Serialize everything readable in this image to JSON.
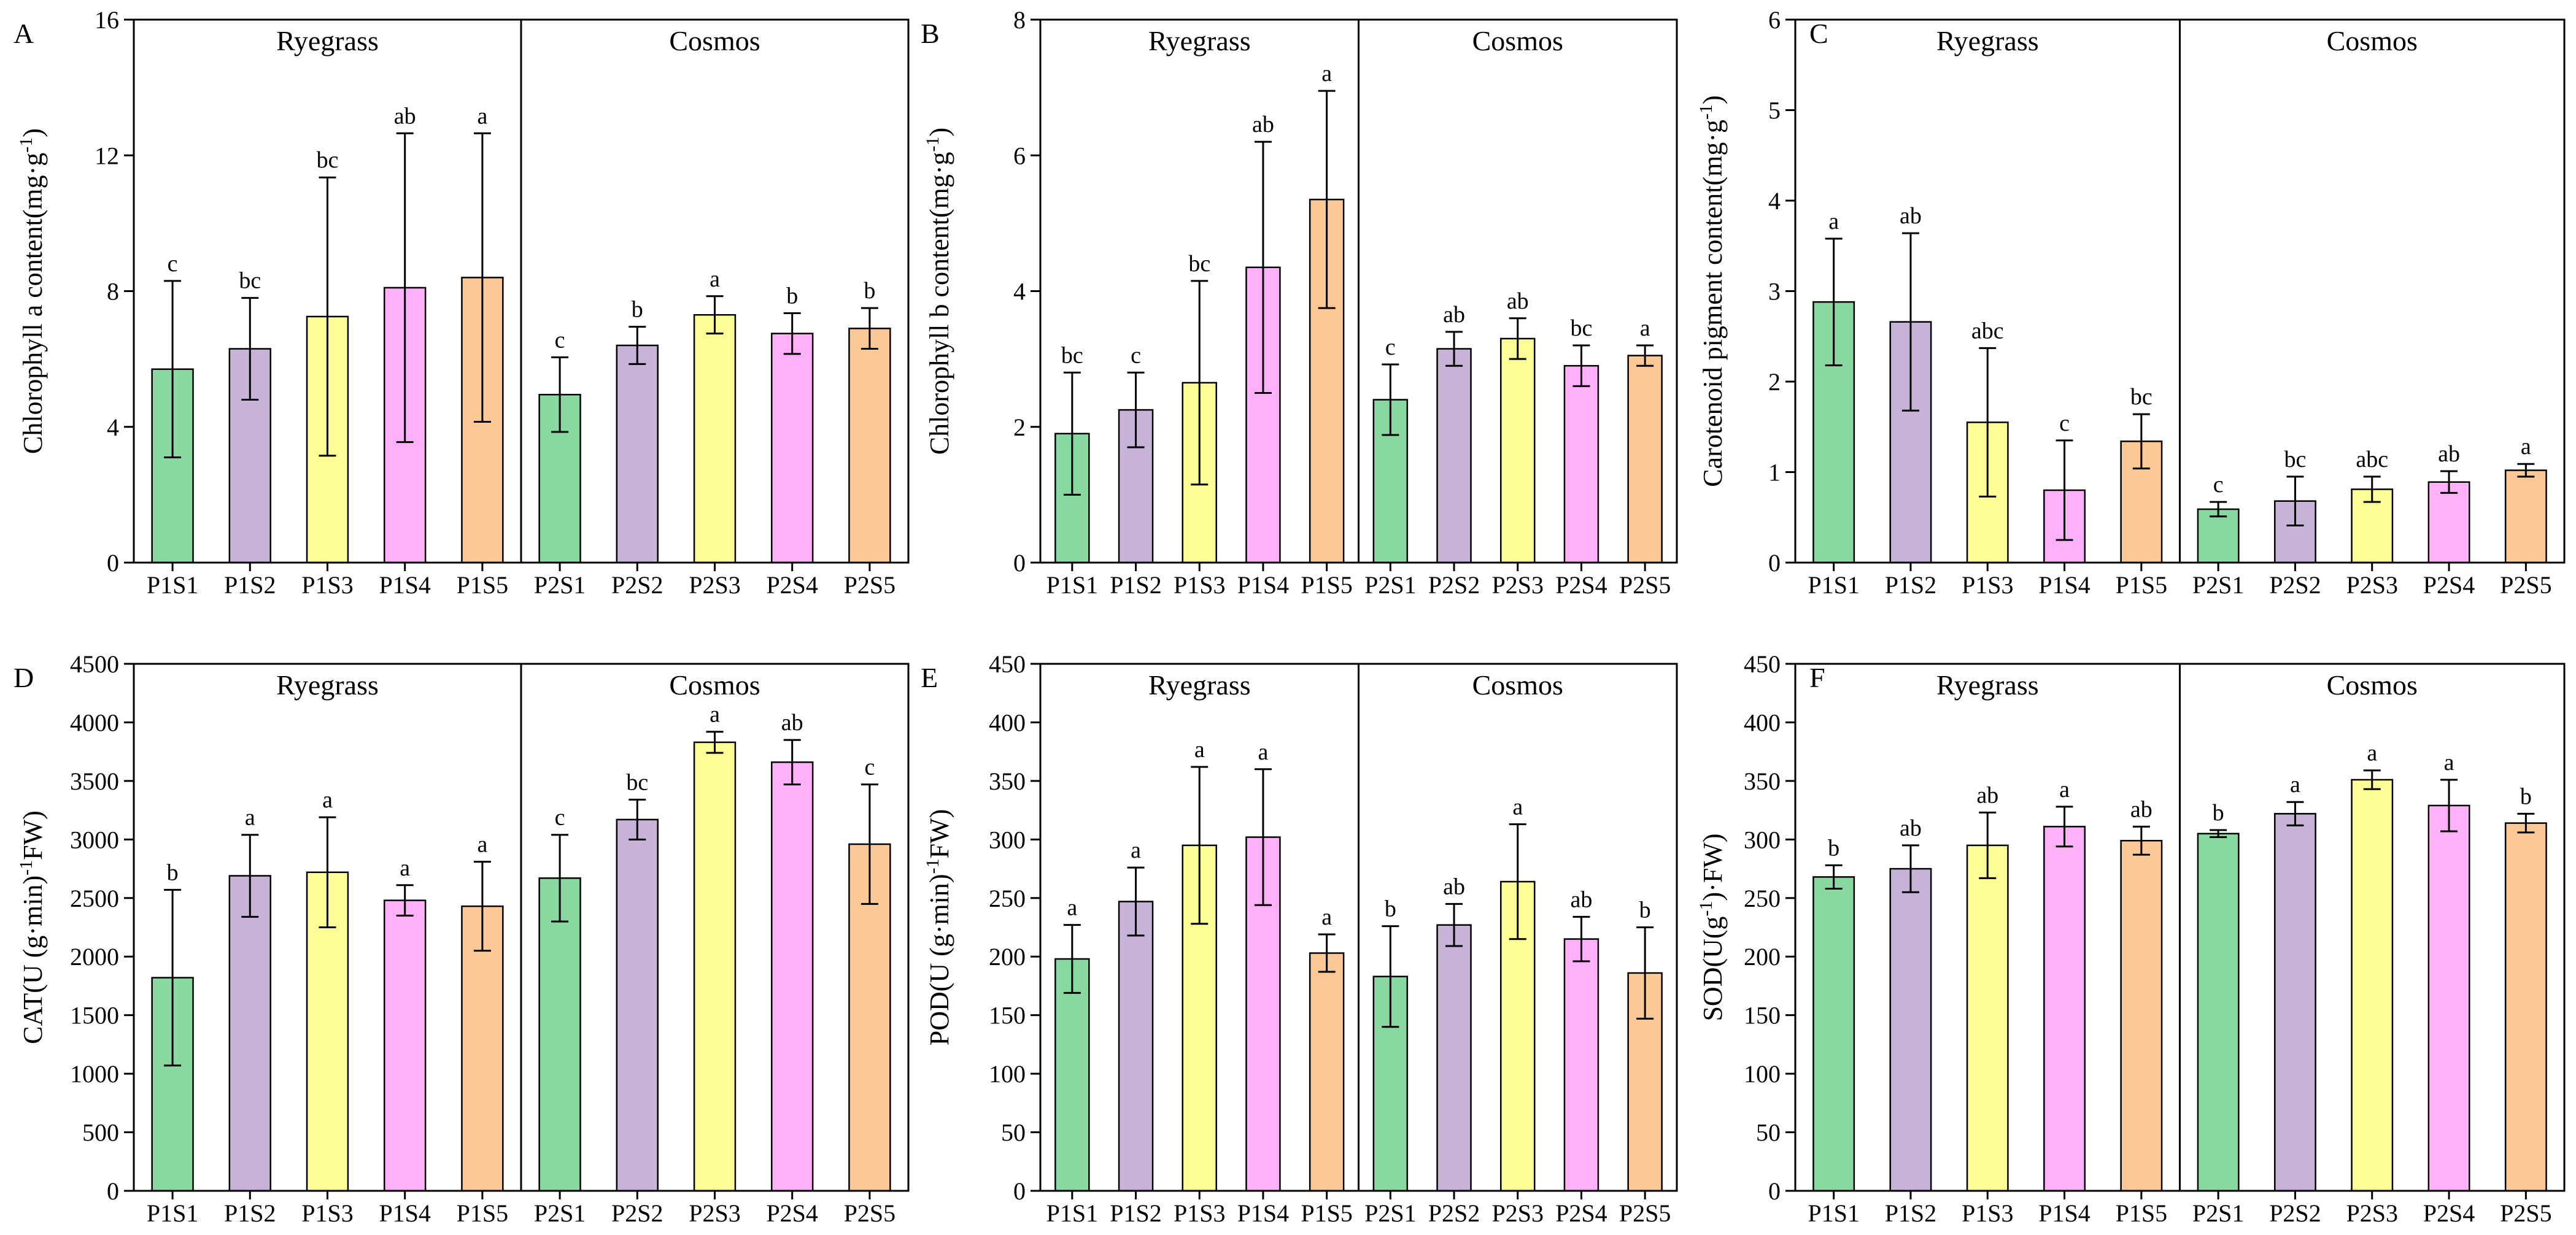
{
  "colors": [
    "#88d8a0",
    "#c7b2d8",
    "#fdfd96",
    "#ffb0f8",
    "#fcc996"
  ],
  "chart_data": [
    {
      "panel": "A",
      "type": "bar",
      "ylabel_parts": [
        "Chlorophyll a content(mg·g",
        "-1",
        ")"
      ],
      "ylim": [
        0,
        16
      ],
      "yticks": [
        0,
        4,
        8,
        12,
        16
      ],
      "groups": [
        "Ryegrass",
        "Cosmos"
      ],
      "categories": [
        "P1S1",
        "P1S2",
        "P1S3",
        "P1S4",
        "P1S5",
        "P2S1",
        "P2S2",
        "P2S3",
        "P2S4",
        "P2S5"
      ],
      "values": [
        5.7,
        6.3,
        7.25,
        8.1,
        8.4,
        4.95,
        6.4,
        7.3,
        6.75,
        6.9
      ],
      "errors": [
        2.6,
        1.5,
        4.1,
        4.55,
        4.25,
        1.1,
        0.55,
        0.55,
        0.6,
        0.6
      ],
      "letters": [
        "c",
        "bc",
        "bc",
        "ab",
        "a",
        "c",
        "b",
        "a",
        "b",
        "b"
      ]
    },
    {
      "panel": "B",
      "type": "bar",
      "ylabel_parts": [
        "Chlorophyll b content(mg·g",
        "-1",
        ")"
      ],
      "ylim": [
        0,
        8
      ],
      "yticks": [
        0,
        2,
        4,
        6,
        8
      ],
      "groups": [
        "Ryegrass",
        "Cosmos"
      ],
      "categories": [
        "P1S1",
        "P1S2",
        "P1S3",
        "P1S4",
        "P1S5",
        "P2S1",
        "P2S2",
        "P2S3",
        "P2S4",
        "P2S5"
      ],
      "values": [
        1.9,
        2.25,
        2.65,
        4.35,
        5.35,
        2.4,
        3.15,
        3.3,
        2.9,
        3.05
      ],
      "errors": [
        0.9,
        0.55,
        1.5,
        1.85,
        1.6,
        0.52,
        0.25,
        0.3,
        0.3,
        0.15
      ],
      "letters": [
        "bc",
        "c",
        "bc",
        "ab",
        "a",
        "c",
        "ab",
        "ab",
        "bc",
        "a"
      ]
    },
    {
      "panel": "C",
      "type": "bar",
      "ylabel_parts": [
        "Carotenoid pigment content(mg·g",
        "-1",
        ")"
      ],
      "ylim": [
        0,
        6
      ],
      "yticks": [
        0,
        1,
        2,
        3,
        4,
        5,
        6
      ],
      "groups": [
        "Ryegrass",
        "Cosmos"
      ],
      "categories": [
        "P1S1",
        "P1S2",
        "P1S3",
        "P1S4",
        "P1S5",
        "P2S1",
        "P2S2",
        "P2S3",
        "P2S4",
        "P2S5"
      ],
      "values": [
        2.88,
        2.66,
        1.55,
        0.8,
        1.34,
        0.59,
        0.68,
        0.81,
        0.89,
        1.02
      ],
      "errors": [
        0.7,
        0.98,
        0.82,
        0.55,
        0.3,
        0.08,
        0.27,
        0.14,
        0.12,
        0.07
      ],
      "letters": [
        "a",
        "ab",
        "abc",
        "c",
        "bc",
        "c",
        "bc",
        "abc",
        "ab",
        "a"
      ]
    },
    {
      "panel": "D",
      "type": "bar",
      "ylabel_parts": [
        "CAT(U (g·min)",
        "-1",
        "FW)"
      ],
      "ylim": [
        0,
        4500
      ],
      "yticks": [
        0,
        500,
        1000,
        1500,
        2000,
        2500,
        3000,
        3500,
        4000,
        4500
      ],
      "groups": [
        "Ryegrass",
        "Cosmos"
      ],
      "categories": [
        "P1S1",
        "P1S2",
        "P1S3",
        "P1S4",
        "P1S5",
        "P2S1",
        "P2S2",
        "P2S3",
        "P2S4",
        "P2S5"
      ],
      "values": [
        1820,
        2690,
        2720,
        2480,
        2430,
        2670,
        3170,
        3830,
        3660,
        2960
      ],
      "errors": [
        750,
        350,
        470,
        130,
        380,
        370,
        170,
        90,
        190,
        510
      ],
      "letters": [
        "b",
        "a",
        "a",
        "a",
        "a",
        "c",
        "bc",
        "a",
        "ab",
        "c"
      ]
    },
    {
      "panel": "E",
      "type": "bar",
      "ylabel_parts": [
        "POD(U (g·min)",
        "-1",
        "FW)"
      ],
      "ylim": [
        0,
        450
      ],
      "yticks": [
        0,
        50,
        100,
        150,
        200,
        250,
        300,
        350,
        400,
        450
      ],
      "groups": [
        "Ryegrass",
        "Cosmos"
      ],
      "categories": [
        "P1S1",
        "P1S2",
        "P1S3",
        "P1S4",
        "P1S5",
        "P2S1",
        "P2S2",
        "P2S3",
        "P2S4",
        "P2S5"
      ],
      "values": [
        198,
        247,
        295,
        302,
        203,
        183,
        227,
        264,
        215,
        186
      ],
      "errors": [
        29,
        29,
        67,
        58,
        16,
        43,
        18,
        49,
        19,
        39
      ],
      "letters": [
        "a",
        "a",
        "a",
        "a",
        "a",
        "b",
        "ab",
        "a",
        "ab",
        "b"
      ]
    },
    {
      "panel": "F",
      "type": "bar",
      "ylabel_parts": [
        "SOD(U(g",
        "-1",
        ")·FW)"
      ],
      "ylim": [
        0,
        450
      ],
      "yticks": [
        0,
        50,
        100,
        150,
        200,
        250,
        300,
        350,
        400,
        450
      ],
      "groups": [
        "Ryegrass",
        "Cosmos"
      ],
      "categories": [
        "P1S1",
        "P1S2",
        "P1S3",
        "P1S4",
        "P1S5",
        "P2S1",
        "P2S2",
        "P2S3",
        "P2S4",
        "P2S5"
      ],
      "values": [
        268,
        275,
        295,
        311,
        299,
        305,
        322,
        351,
        329,
        314
      ],
      "errors": [
        10,
        20,
        28,
        17,
        12,
        3,
        10,
        8,
        22,
        8
      ],
      "letters": [
        "b",
        "ab",
        "ab",
        "a",
        "ab",
        "b",
        "a",
        "a",
        "a",
        "b"
      ]
    }
  ]
}
